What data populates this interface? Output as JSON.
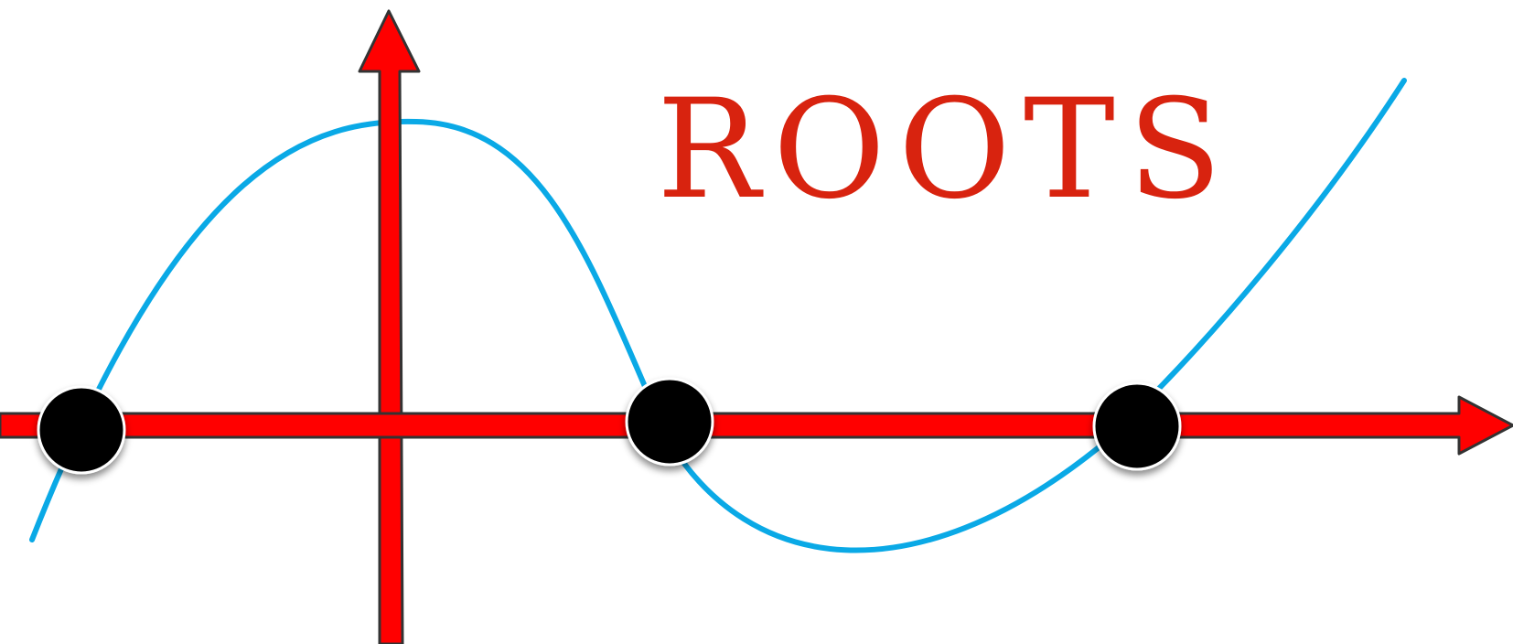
{
  "title": "ROOTS",
  "colors": {
    "axis_fill": "#ff0000",
    "axis_stroke": "#333333",
    "curve": "#0aa9e6",
    "root_marker": "#000000",
    "root_marker_ring": "#ffffff",
    "title": "#d8230f",
    "background": "#ffffff"
  },
  "roots_count": 3
}
